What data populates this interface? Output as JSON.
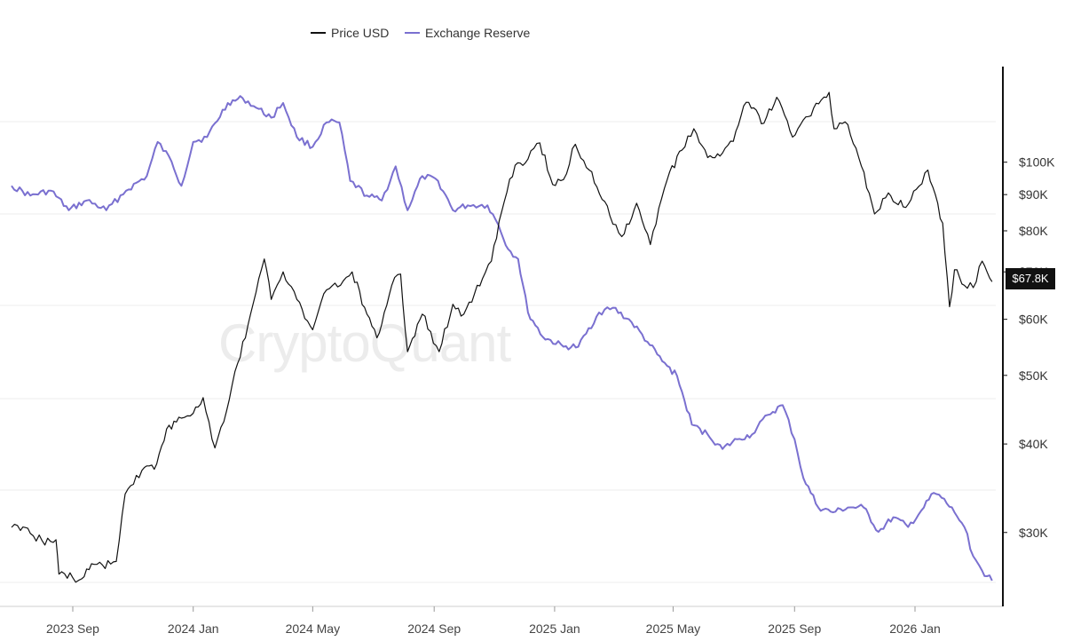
{
  "chart_data": {
    "type": "line",
    "legend_position": "top-center",
    "grid": true,
    "series": [
      {
        "name": "Price USD",
        "color": "#111111",
        "axis": "right",
        "note": "values in USD, right log axis"
      },
      {
        "name": "Exchange Reserve",
        "color": "#7a70d0",
        "axis": "left-hidden",
        "note": "left axis not labeled; values shown as relative level 0-1 of reserve range"
      }
    ],
    "x_ticks": [
      "2023 Sep",
      "2024 Jan",
      "2024 May",
      "2024 Sep",
      "2025 Jan",
      "2025 May",
      "2025 Sep",
      "2026 Jan"
    ],
    "y_ticks": [
      "$100K",
      "$90K",
      "$80K",
      "$70K",
      "$60K",
      "$50K",
      "$40K",
      "$30K"
    ],
    "y_tick_values": [
      100000,
      90000,
      80000,
      70000,
      60000,
      50000,
      40000,
      30000
    ],
    "y_scale": "log",
    "ylim": [
      23000,
      140000
    ],
    "current_price_label": "$67.8K",
    "watermark": "CryptoQuant",
    "price": [
      [
        "2023-07-01",
        30500
      ],
      [
        "2023-07-10",
        30200
      ],
      [
        "2023-07-20",
        29900
      ],
      [
        "2023-08-01",
        29200
      ],
      [
        "2023-08-15",
        29300
      ],
      [
        "2023-08-18",
        26200
      ],
      [
        "2023-09-01",
        25900
      ],
      [
        "2023-09-10",
        25800
      ],
      [
        "2023-09-20",
        27100
      ],
      [
        "2023-10-01",
        27000
      ],
      [
        "2023-10-15",
        27300
      ],
      [
        "2023-10-24",
        34000
      ],
      [
        "2023-11-10",
        36700
      ],
      [
        "2023-11-25",
        37500
      ],
      [
        "2023-12-05",
        42000
      ],
      [
        "2023-12-20",
        43500
      ],
      [
        "2024-01-01",
        44200
      ],
      [
        "2024-01-11",
        46500
      ],
      [
        "2024-01-23",
        39500
      ],
      [
        "2024-02-01",
        43000
      ],
      [
        "2024-02-15",
        52000
      ],
      [
        "2024-02-28",
        61000
      ],
      [
        "2024-03-13",
        73000
      ],
      [
        "2024-03-20",
        64000
      ],
      [
        "2024-04-01",
        70000
      ],
      [
        "2024-04-15",
        64000
      ],
      [
        "2024-05-01",
        58000
      ],
      [
        "2024-05-15",
        66000
      ],
      [
        "2024-06-01",
        68000
      ],
      [
        "2024-06-10",
        70000
      ],
      [
        "2024-06-25",
        61000
      ],
      [
        "2024-07-05",
        56500
      ],
      [
        "2024-07-20",
        67000
      ],
      [
        "2024-07-29",
        69500
      ],
      [
        "2024-08-05",
        54000
      ],
      [
        "2024-08-20",
        61000
      ],
      [
        "2024-09-06",
        54000
      ],
      [
        "2024-09-20",
        63000
      ],
      [
        "2024-10-01",
        61000
      ],
      [
        "2024-10-20",
        68500
      ],
      [
        "2024-10-29",
        72500
      ],
      [
        "2024-11-11",
        88000
      ],
      [
        "2024-11-22",
        99000
      ],
      [
        "2024-12-05",
        101000
      ],
      [
        "2024-12-17",
        106500
      ],
      [
        "2024-12-30",
        93000
      ],
      [
        "2025-01-10",
        94500
      ],
      [
        "2025-01-22",
        106000
      ],
      [
        "2025-02-05",
        97500
      ],
      [
        "2025-02-26",
        84000
      ],
      [
        "2025-03-10",
        78500
      ],
      [
        "2025-03-25",
        87500
      ],
      [
        "2025-04-08",
        76500
      ],
      [
        "2025-04-25",
        94500
      ],
      [
        "2025-05-10",
        104000
      ],
      [
        "2025-05-22",
        111500
      ],
      [
        "2025-06-05",
        101500
      ],
      [
        "2025-06-20",
        103000
      ],
      [
        "2025-07-01",
        107000
      ],
      [
        "2025-07-14",
        121500
      ],
      [
        "2025-08-01",
        113500
      ],
      [
        "2025-08-14",
        123500
      ],
      [
        "2025-08-30",
        108500
      ],
      [
        "2025-09-15",
        116000
      ],
      [
        "2025-10-06",
        125500
      ],
      [
        "2025-10-11",
        111500
      ],
      [
        "2025-10-25",
        113000
      ],
      [
        "2025-11-05",
        101500
      ],
      [
        "2025-11-21",
        84500
      ],
      [
        "2025-12-05",
        90500
      ],
      [
        "2025-12-20",
        86500
      ],
      [
        "2026-01-05",
        92500
      ],
      [
        "2026-01-14",
        97500
      ],
      [
        "2026-01-29",
        82000
      ],
      [
        "2026-02-05",
        62500
      ],
      [
        "2026-02-10",
        70500
      ],
      [
        "2026-02-20",
        67000
      ],
      [
        "2026-03-01",
        66500
      ],
      [
        "2026-03-10",
        72500
      ],
      [
        "2026-03-20",
        67800
      ]
    ],
    "reserve_relative": [
      [
        "2023-07-01",
        0.81
      ],
      [
        "2023-07-20",
        0.79
      ],
      [
        "2023-08-10",
        0.8
      ],
      [
        "2023-08-28",
        0.76
      ],
      [
        "2023-09-15",
        0.78
      ],
      [
        "2023-10-05",
        0.76
      ],
      [
        "2023-10-25",
        0.8
      ],
      [
        "2023-11-15",
        0.83
      ],
      [
        "2023-11-26",
        0.9
      ],
      [
        "2023-12-10",
        0.86
      ],
      [
        "2023-12-20",
        0.81
      ],
      [
        "2024-01-01",
        0.9
      ],
      [
        "2024-01-15",
        0.91
      ],
      [
        "2024-02-05",
        0.98
      ],
      [
        "2024-02-20",
        0.99
      ],
      [
        "2024-03-05",
        0.97
      ],
      [
        "2024-03-20",
        0.95
      ],
      [
        "2024-04-01",
        0.98
      ],
      [
        "2024-04-15",
        0.91
      ],
      [
        "2024-05-01",
        0.89
      ],
      [
        "2024-05-15",
        0.94
      ],
      [
        "2024-05-28",
        0.94
      ],
      [
        "2024-06-08",
        0.82
      ],
      [
        "2024-06-25",
        0.79
      ],
      [
        "2024-07-10",
        0.78
      ],
      [
        "2024-07-24",
        0.85
      ],
      [
        "2024-08-05",
        0.76
      ],
      [
        "2024-08-20",
        0.83
      ],
      [
        "2024-09-05",
        0.82
      ],
      [
        "2024-09-20",
        0.76
      ],
      [
        "2024-10-05",
        0.77
      ],
      [
        "2024-10-25",
        0.77
      ],
      [
        "2024-11-05",
        0.73
      ],
      [
        "2024-11-15",
        0.68
      ],
      [
        "2024-11-25",
        0.66
      ],
      [
        "2024-12-05",
        0.55
      ],
      [
        "2024-12-20",
        0.5
      ],
      [
        "2025-01-10",
        0.48
      ],
      [
        "2025-01-25",
        0.48
      ],
      [
        "2025-02-15",
        0.55
      ],
      [
        "2025-03-01",
        0.56
      ],
      [
        "2025-03-20",
        0.53
      ],
      [
        "2025-04-05",
        0.49
      ],
      [
        "2025-04-20",
        0.45
      ],
      [
        "2025-05-05",
        0.42
      ],
      [
        "2025-05-20",
        0.32
      ],
      [
        "2025-06-05",
        0.3
      ],
      [
        "2025-06-20",
        0.27
      ],
      [
        "2025-07-05",
        0.29
      ],
      [
        "2025-07-20",
        0.3
      ],
      [
        "2025-08-05",
        0.34
      ],
      [
        "2025-08-20",
        0.36
      ],
      [
        "2025-09-01",
        0.29
      ],
      [
        "2025-09-10",
        0.21
      ],
      [
        "2025-09-25",
        0.15
      ],
      [
        "2025-10-10",
        0.14
      ],
      [
        "2025-10-25",
        0.15
      ],
      [
        "2025-11-10",
        0.15
      ],
      [
        "2025-11-25",
        0.1
      ],
      [
        "2025-12-10",
        0.13
      ],
      [
        "2025-12-25",
        0.11
      ],
      [
        "2026-01-10",
        0.15
      ],
      [
        "2026-01-20",
        0.18
      ],
      [
        "2026-01-28",
        0.17
      ],
      [
        "2026-02-10",
        0.14
      ],
      [
        "2026-02-20",
        0.11
      ],
      [
        "2026-03-01",
        0.05
      ],
      [
        "2026-03-10",
        0.02
      ],
      [
        "2026-03-20",
        0.0
      ]
    ]
  }
}
